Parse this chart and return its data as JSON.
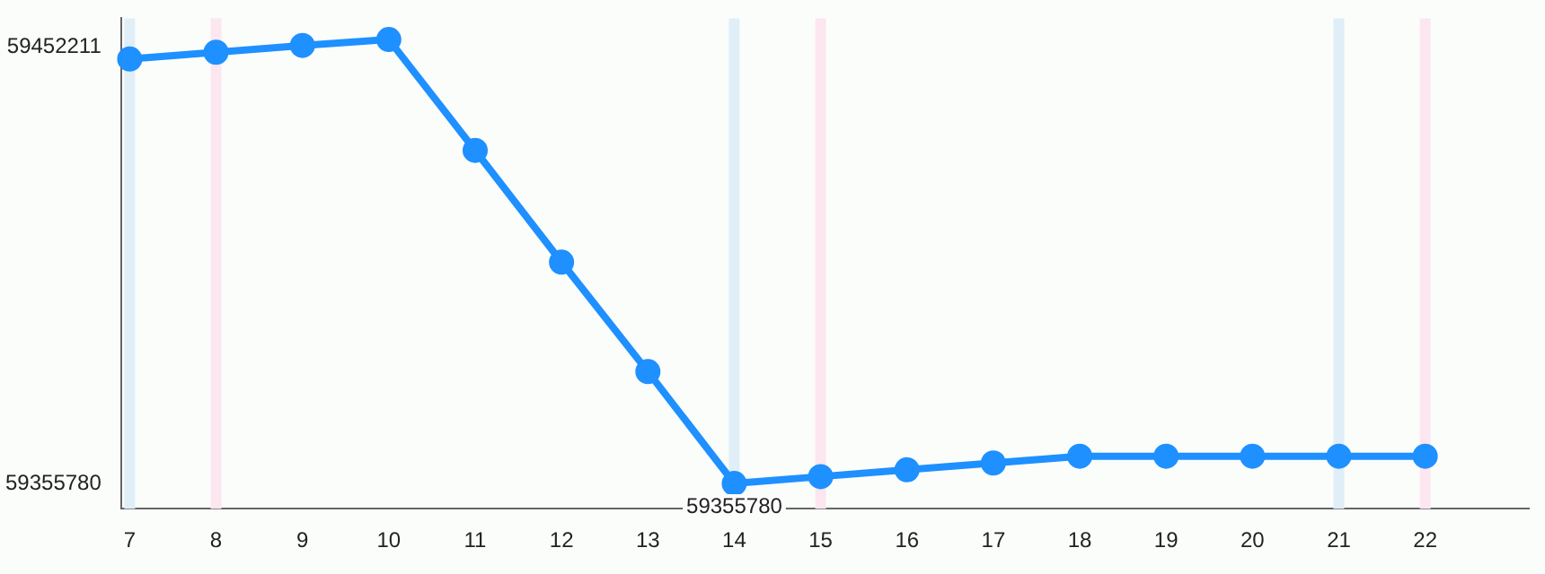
{
  "chart_data": {
    "type": "line",
    "x": [
      7,
      8,
      9,
      10,
      11,
      12,
      13,
      14,
      15,
      16,
      17,
      18,
      19,
      20,
      21,
      22
    ],
    "series": [
      {
        "color": "#1e90ff",
        "values": [
          59449600,
          59451100,
          59452600,
          59453900,
          59429400,
          59404700,
          59380500,
          59355780,
          59357300,
          59358800,
          59360300,
          59361800,
          59361800,
          59361800,
          59361800,
          59361800
        ],
        "value_labels": [
          null,
          null,
          null,
          null,
          null,
          null,
          null,
          "59355780",
          null,
          null,
          null,
          null,
          null,
          null,
          null,
          null
        ]
      }
    ],
    "xlim": [
      6.9,
      23.2
    ],
    "xticks": [
      7,
      8,
      9,
      10,
      11,
      12,
      13,
      14,
      15,
      16,
      17,
      18,
      19,
      20,
      21,
      22
    ],
    "ylim": [
      59350200,
      59458600
    ],
    "yticks": [
      59355780,
      59452211
    ],
    "ref_lines": [
      {
        "axis": "x",
        "value": 7,
        "color": "#e0eef8"
      },
      {
        "axis": "x",
        "value": 14,
        "color": "#e0eef8"
      },
      {
        "axis": "x",
        "value": 21,
        "color": "#e0eef8"
      },
      {
        "axis": "x",
        "value": 8,
        "color": "#fce6f0"
      },
      {
        "axis": "x",
        "value": 15,
        "color": "#fce6f0"
      },
      {
        "axis": "x",
        "value": 22,
        "color": "#fce6f0"
      }
    ],
    "grid": false,
    "legend": false,
    "marker": "circle",
    "line_style": "solid"
  }
}
